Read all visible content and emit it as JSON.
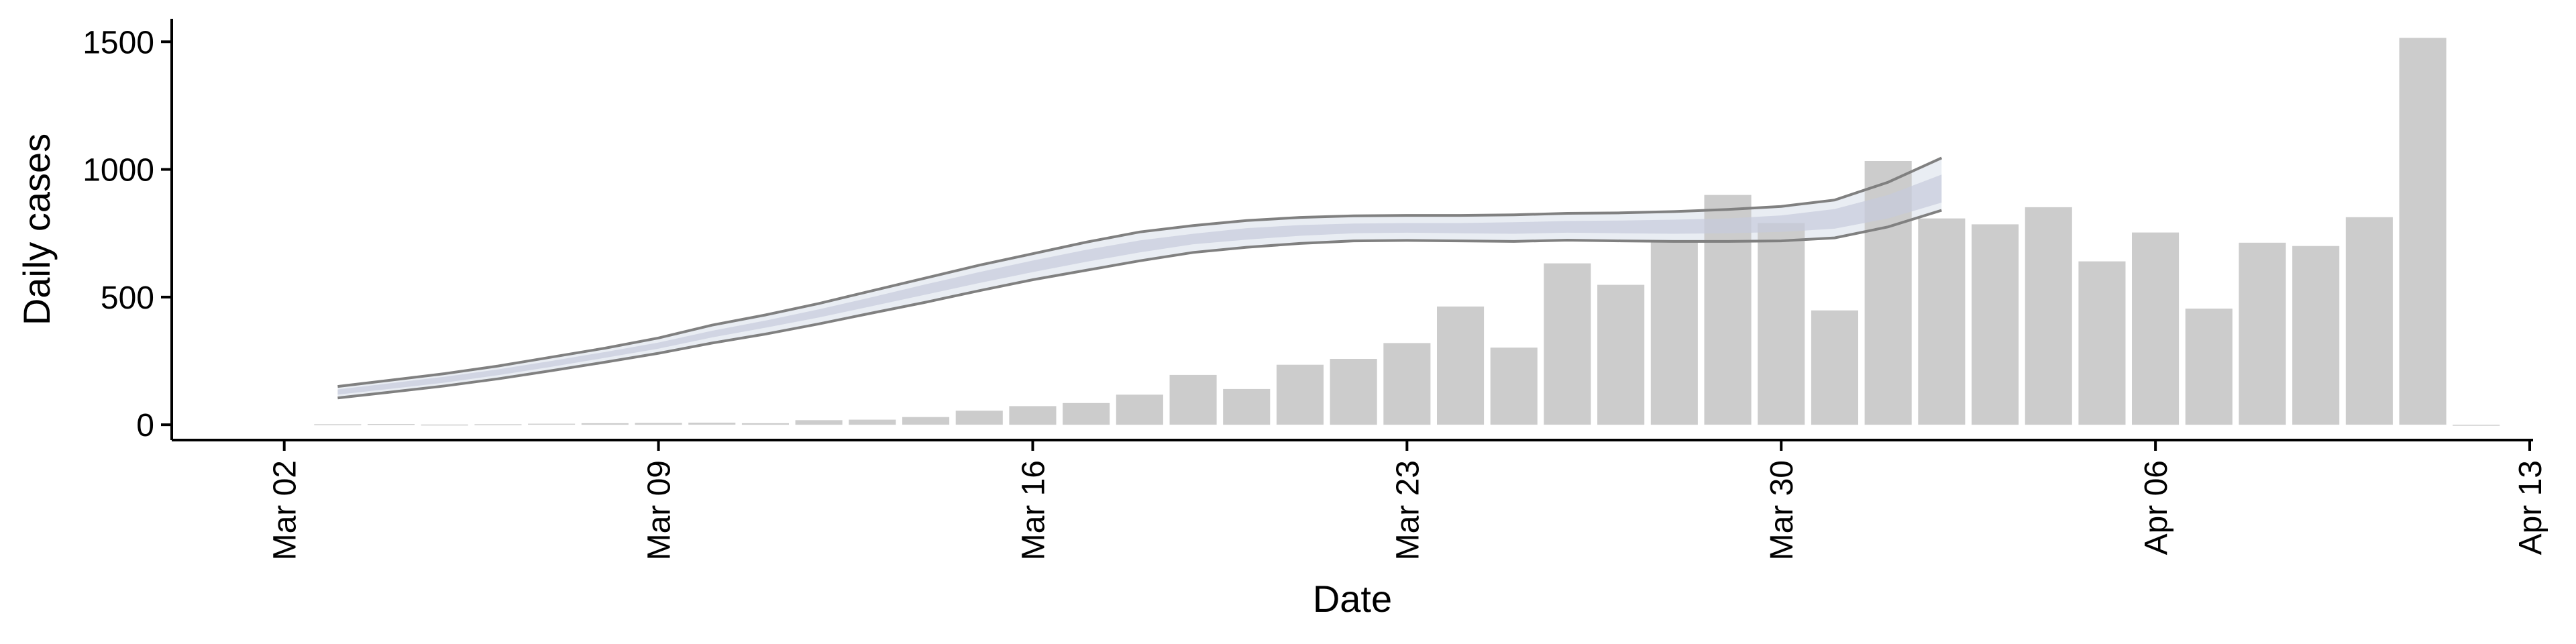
{
  "chart_data": {
    "type": "bar",
    "xlabel": "Date",
    "ylabel": "Daily cases",
    "ylim": [
      -60,
      1590
    ],
    "xlim": [
      "2020-03-01",
      "2020-04-13"
    ],
    "grid": false,
    "legend": "none",
    "x_tick_labels": [
      {
        "date": "2020-03-02",
        "label": "Mar 02"
      },
      {
        "date": "2020-03-09",
        "label": "Mar 09"
      },
      {
        "date": "2020-03-16",
        "label": "Mar 16"
      },
      {
        "date": "2020-03-23",
        "label": "Mar 23"
      },
      {
        "date": "2020-03-30",
        "label": "Mar 30"
      },
      {
        "date": "2020-04-06",
        "label": "Apr 06"
      },
      {
        "date": "2020-04-13",
        "label": "Apr 13"
      }
    ],
    "y_tick_labels": [
      {
        "value": 0,
        "label": "0"
      },
      {
        "value": 500,
        "label": "500"
      },
      {
        "value": 1000,
        "label": "1000"
      },
      {
        "value": 1500,
        "label": "1500"
      }
    ],
    "bars": {
      "color": "#cccccc",
      "dates": [
        "2020-03-03",
        "2020-03-04",
        "2020-03-05",
        "2020-03-06",
        "2020-03-07",
        "2020-03-08",
        "2020-03-09",
        "2020-03-10",
        "2020-03-11",
        "2020-03-12",
        "2020-03-13",
        "2020-03-14",
        "2020-03-15",
        "2020-03-16",
        "2020-03-17",
        "2020-03-18",
        "2020-03-19",
        "2020-03-20",
        "2020-03-21",
        "2020-03-22",
        "2020-03-23",
        "2020-03-24",
        "2020-03-25",
        "2020-03-26",
        "2020-03-27",
        "2020-03-28",
        "2020-03-29",
        "2020-03-30",
        "2020-03-31",
        "2020-04-01",
        "2020-04-02",
        "2020-04-03",
        "2020-04-04",
        "2020-04-05",
        "2020-04-06",
        "2020-04-07",
        "2020-04-08",
        "2020-04-09",
        "2020-04-10",
        "2020-04-11",
        "2020-04-12"
      ],
      "values": [
        2,
        3,
        1,
        2,
        4,
        6,
        7,
        8,
        6,
        18,
        20,
        30,
        55,
        73,
        85,
        118,
        195,
        140,
        235,
        258,
        320,
        463,
        302,
        632,
        548,
        718,
        900,
        790,
        448,
        1033,
        808,
        785,
        852,
        640,
        753,
        455,
        713,
        700,
        813,
        1515,
        0
      ]
    },
    "estimate": {
      "line_color": "#808080",
      "band_outer_color": "#e4e8f0",
      "band_inner_color": "#c6cbdc",
      "dates": [
        "2020-03-03",
        "2020-03-04",
        "2020-03-05",
        "2020-03-06",
        "2020-03-07",
        "2020-03-08",
        "2020-03-09",
        "2020-03-10",
        "2020-03-11",
        "2020-03-12",
        "2020-03-13",
        "2020-03-14",
        "2020-03-15",
        "2020-03-16",
        "2020-03-17",
        "2020-03-18",
        "2020-03-19",
        "2020-03-20",
        "2020-03-21",
        "2020-03-22",
        "2020-03-23",
        "2020-03-24",
        "2020-03-25",
        "2020-03-26",
        "2020-03-27",
        "2020-03-28",
        "2020-03-29",
        "2020-03-30",
        "2020-03-31",
        "2020-04-01",
        "2020-04-02"
      ],
      "upper": [
        150,
        175,
        200,
        230,
        265,
        300,
        340,
        390,
        430,
        475,
        525,
        575,
        625,
        670,
        715,
        755,
        780,
        800,
        812,
        818,
        820,
        820,
        822,
        828,
        830,
        835,
        843,
        855,
        880,
        950,
        1045
      ],
      "lower": [
        105,
        128,
        152,
        180,
        212,
        245,
        280,
        320,
        355,
        395,
        438,
        480,
        525,
        568,
        605,
        642,
        675,
        695,
        710,
        720,
        722,
        720,
        718,
        723,
        720,
        718,
        718,
        720,
        732,
        775,
        840
      ],
      "upper_inner": [
        138,
        163,
        188,
        217,
        250,
        285,
        322,
        368,
        408,
        452,
        500,
        550,
        598,
        643,
        685,
        722,
        748,
        770,
        782,
        788,
        790,
        790,
        793,
        798,
        800,
        803,
        808,
        820,
        845,
        900,
        980
      ],
      "lower_inner": [
        118,
        141,
        165,
        194,
        227,
        262,
        298,
        342,
        380,
        420,
        465,
        510,
        555,
        598,
        638,
        675,
        707,
        725,
        740,
        750,
        752,
        750,
        748,
        752,
        750,
        748,
        750,
        755,
        768,
        808,
        870
      ]
    }
  }
}
